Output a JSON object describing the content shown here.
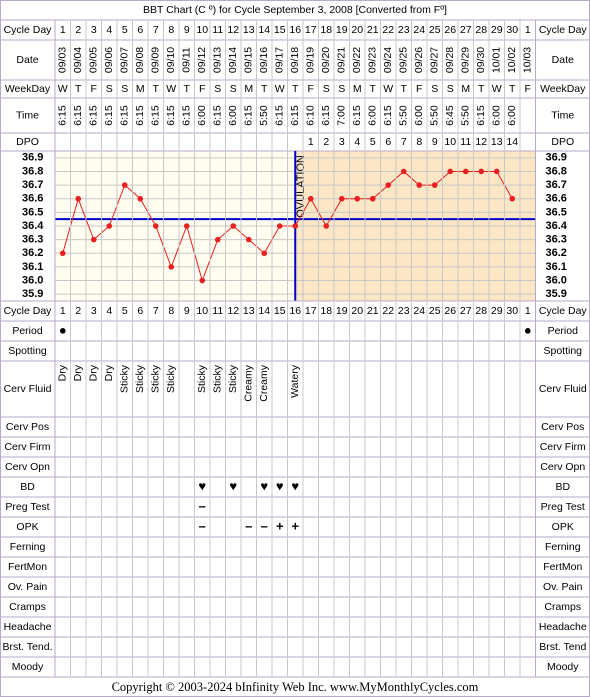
{
  "title": "BBT Chart (C º) for Cycle September 3, 2008  [Converted from Fº]",
  "labels": {
    "cycle_day": "Cycle Day",
    "date": "Date",
    "weekday": "WeekDay",
    "time": "Time",
    "dpo": "DPO"
  },
  "dates": [
    "09/03",
    "09/04",
    "09/05",
    "09/06",
    "09/07",
    "09/08",
    "09/09",
    "09/10",
    "09/11",
    "09/12",
    "09/13",
    "09/14",
    "09/15",
    "09/16",
    "09/17",
    "09/18",
    "09/19",
    "09/20",
    "09/21",
    "09/22",
    "09/23",
    "09/24",
    "09/25",
    "09/26",
    "09/27",
    "09/28",
    "09/29",
    "09/30",
    "10/01",
    "10/02",
    "10/03"
  ],
  "weekdays": [
    "W",
    "T",
    "F",
    "S",
    "S",
    "M",
    "T",
    "W",
    "T",
    "F",
    "S",
    "S",
    "M",
    "T",
    "W",
    "T",
    "F",
    "S",
    "S",
    "M",
    "T",
    "W",
    "T",
    "F",
    "S",
    "S",
    "M",
    "T",
    "W",
    "T",
    "F"
  ],
  "times": [
    "6:15",
    "6:15",
    "6:15",
    "6:15",
    "6:15",
    "6:15",
    "6:15",
    "6:15",
    "6:15",
    "6:00",
    "6:15",
    "6:00",
    "6:15",
    "5:50",
    "6:15",
    "6:15",
    "6:10",
    "6:15",
    "7:00",
    "6:15",
    "6:00",
    "6:15",
    "5:50",
    "6:00",
    "5:50",
    "6:45",
    "5:50",
    "6:15",
    "6:00",
    "6:00",
    null
  ],
  "dpo": [
    null,
    null,
    null,
    null,
    null,
    null,
    null,
    null,
    null,
    null,
    null,
    null,
    null,
    null,
    null,
    null,
    1,
    2,
    3,
    4,
    5,
    6,
    7,
    8,
    9,
    10,
    11,
    12,
    13,
    14,
    null
  ],
  "chart_data": {
    "type": "line",
    "categories": [
      1,
      2,
      3,
      4,
      5,
      6,
      7,
      8,
      9,
      10,
      11,
      12,
      13,
      14,
      15,
      16,
      17,
      18,
      19,
      20,
      21,
      22,
      23,
      24,
      25,
      26,
      27,
      28,
      29,
      30,
      1
    ],
    "values": [
      36.2,
      36.6,
      36.3,
      36.4,
      36.7,
      36.6,
      36.4,
      36.1,
      36.4,
      36.0,
      36.3,
      36.4,
      36.3,
      36.2,
      36.4,
      36.4,
      36.6,
      36.4,
      36.6,
      36.6,
      36.6,
      36.7,
      36.8,
      36.7,
      36.7,
      36.8,
      36.8,
      36.8,
      36.8,
      36.6,
      null
    ],
    "color": "#e82020",
    "ylim": [
      35.85,
      36.95
    ],
    "yticks": [
      35.9,
      {
        "value": 36,
        "label": "36.0"
      },
      36.1,
      36.2,
      36.3,
      36.4,
      36.5,
      36.6,
      36.7,
      36.8,
      36.9
    ],
    "grid": true,
    "coverline": 36.45,
    "coverline_color": "#0000cc",
    "ovulation_day": 16,
    "ovulation_label": "OVULATION"
  },
  "observations": [
    {
      "label": "Period",
      "color": "#e040e0",
      "cells": [
        "●",
        null,
        null,
        null,
        null,
        null,
        null,
        null,
        null,
        null,
        null,
        null,
        null,
        null,
        null,
        null,
        null,
        null,
        null,
        null,
        null,
        null,
        null,
        null,
        null,
        null,
        null,
        null,
        null,
        null,
        "●"
      ]
    },
    {
      "label": "Spotting"
    },
    {
      "label": "Cerv Fluid",
      "tall": true,
      "color": "#000000",
      "cells": [
        "Dry",
        "Dry",
        "Dry",
        "Dry",
        "Sticky",
        "Sticky",
        "Sticky",
        "Sticky",
        null,
        "Sticky",
        "Sticky",
        "Sticky",
        "Creamy",
        "Creamy",
        null,
        "Watery",
        null,
        null,
        null,
        null,
        null,
        null,
        null,
        null,
        null,
        null,
        null,
        null,
        null,
        null,
        null
      ]
    },
    {
      "label": "Cerv Pos"
    },
    {
      "label": "Cerv Firm"
    },
    {
      "label": "Cerv Opn"
    },
    {
      "label": "BD",
      "color": "#e83c8c",
      "cells": [
        null,
        null,
        null,
        null,
        null,
        null,
        null,
        null,
        null,
        "♥",
        null,
        "♥",
        null,
        "♥",
        "♥",
        "♥",
        null,
        null,
        null,
        null,
        null,
        null,
        null,
        null,
        null,
        null,
        null,
        null,
        null,
        null,
        null
      ]
    },
    {
      "label": "Preg Test",
      "color": "#8a3cc8",
      "cells": [
        null,
        null,
        null,
        null,
        null,
        null,
        null,
        null,
        null,
        "–",
        null,
        null,
        null,
        null,
        null,
        null,
        null,
        null,
        null,
        null,
        null,
        null,
        null,
        null,
        null,
        null,
        null,
        null,
        null,
        null,
        null
      ]
    },
    {
      "label": "OPK",
      "color": "#8a3cc8",
      "cells": [
        null,
        null,
        null,
        null,
        null,
        null,
        null,
        null,
        null,
        "–",
        null,
        null,
        "–",
        "–",
        "+",
        "+",
        null,
        null,
        null,
        null,
        null,
        null,
        null,
        null,
        null,
        null,
        null,
        null,
        null,
        null,
        null
      ]
    },
    {
      "label": "Ferning"
    },
    {
      "label": "FertMon"
    },
    {
      "label": "Ov. Pain"
    },
    {
      "label": "Cramps"
    },
    {
      "label": "Headache"
    },
    {
      "label": "Brst. Tend.",
      "right_label": "Brst. Tend"
    },
    {
      "label": "Moody"
    }
  ],
  "copyright": "Copyright © 2003-2024 bInfinity Web Inc.    www.MyMonthlyCycles.com"
}
